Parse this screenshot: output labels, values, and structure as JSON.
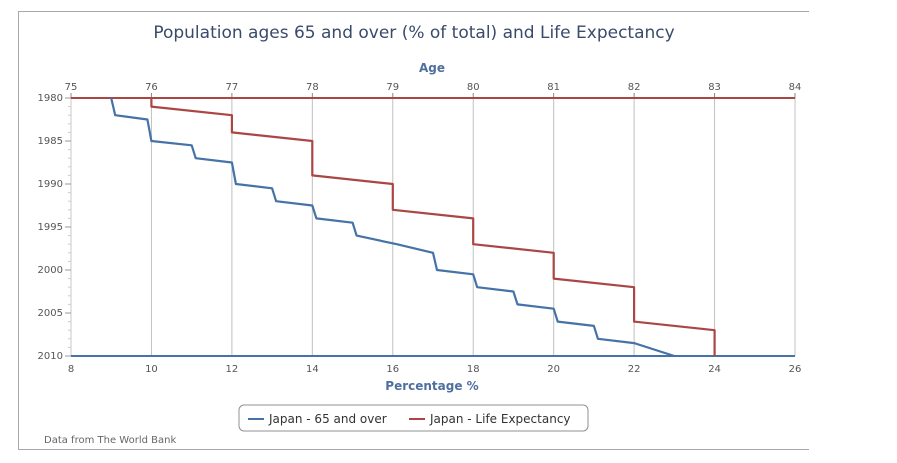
{
  "chart_data": {
    "type": "line",
    "title": "Population ages 65 and over (% of total) and Life Expectancy",
    "top_axis": {
      "label": "Age",
      "range": [
        75,
        84
      ],
      "ticks": [
        "75",
        "76",
        "77",
        "78",
        "79",
        "80",
        "81",
        "82",
        "83",
        "84"
      ]
    },
    "bottom_axis": {
      "label": "Percentage %",
      "range": [
        8,
        26
      ],
      "ticks": [
        "8",
        "10",
        "12",
        "14",
        "16",
        "18",
        "20",
        "22",
        "24",
        "26"
      ]
    },
    "y_axis": {
      "label": "",
      "range": [
        1980,
        2010
      ],
      "reversed": true,
      "ticks": [
        "1980",
        "1985",
        "1990",
        "1995",
        "2000",
        "2005",
        "2010"
      ]
    },
    "grid": "vertical",
    "legend_placement": "bottom-center",
    "series": [
      {
        "name": "Japan - 65 and over",
        "axis": "bottom",
        "color": "#4572a7",
        "points": [
          [
            9.0,
            1980
          ],
          [
            9.1,
            1982
          ],
          [
            9.9,
            1982.5
          ],
          [
            10.0,
            1985
          ],
          [
            11.0,
            1985.5
          ],
          [
            11.1,
            1987
          ],
          [
            12.0,
            1987.5
          ],
          [
            12.1,
            1990
          ],
          [
            13.0,
            1990.5
          ],
          [
            13.1,
            1992
          ],
          [
            14.0,
            1992.5
          ],
          [
            14.1,
            1994
          ],
          [
            15.0,
            1994.5
          ],
          [
            15.1,
            1996
          ],
          [
            16.1,
            1997
          ],
          [
            17.0,
            1998
          ],
          [
            17.1,
            2000
          ],
          [
            18.0,
            2000.5
          ],
          [
            18.1,
            2002
          ],
          [
            19.0,
            2002.5
          ],
          [
            19.1,
            2004
          ],
          [
            20.0,
            2004.5
          ],
          [
            20.1,
            2006
          ],
          [
            21.0,
            2006.5
          ],
          [
            21.1,
            2008
          ],
          [
            22.0,
            2008.5
          ],
          [
            23.0,
            2010
          ]
        ]
      },
      {
        "name": "Japan - Life Expectancy",
        "axis": "top",
        "color": "#aa4643",
        "points": [
          [
            76.0,
            1980
          ],
          [
            76.0,
            1981
          ],
          [
            77.0,
            1982
          ],
          [
            77.0,
            1984
          ],
          [
            78.0,
            1985
          ],
          [
            78.0,
            1989
          ],
          [
            79.0,
            1990
          ],
          [
            79.0,
            1993
          ],
          [
            80.0,
            1994
          ],
          [
            80.0,
            1997
          ],
          [
            81.0,
            1998
          ],
          [
            81.0,
            2001
          ],
          [
            82.0,
            2002
          ],
          [
            82.0,
            2006
          ],
          [
            83.0,
            2007
          ],
          [
            83.0,
            2010
          ]
        ]
      }
    ]
  },
  "source_note": "Data from The World Bank",
  "colors": {
    "axis_top": "#aa4643",
    "axis_bottom": "#4572a7",
    "grid": "#c0c0c0"
  }
}
